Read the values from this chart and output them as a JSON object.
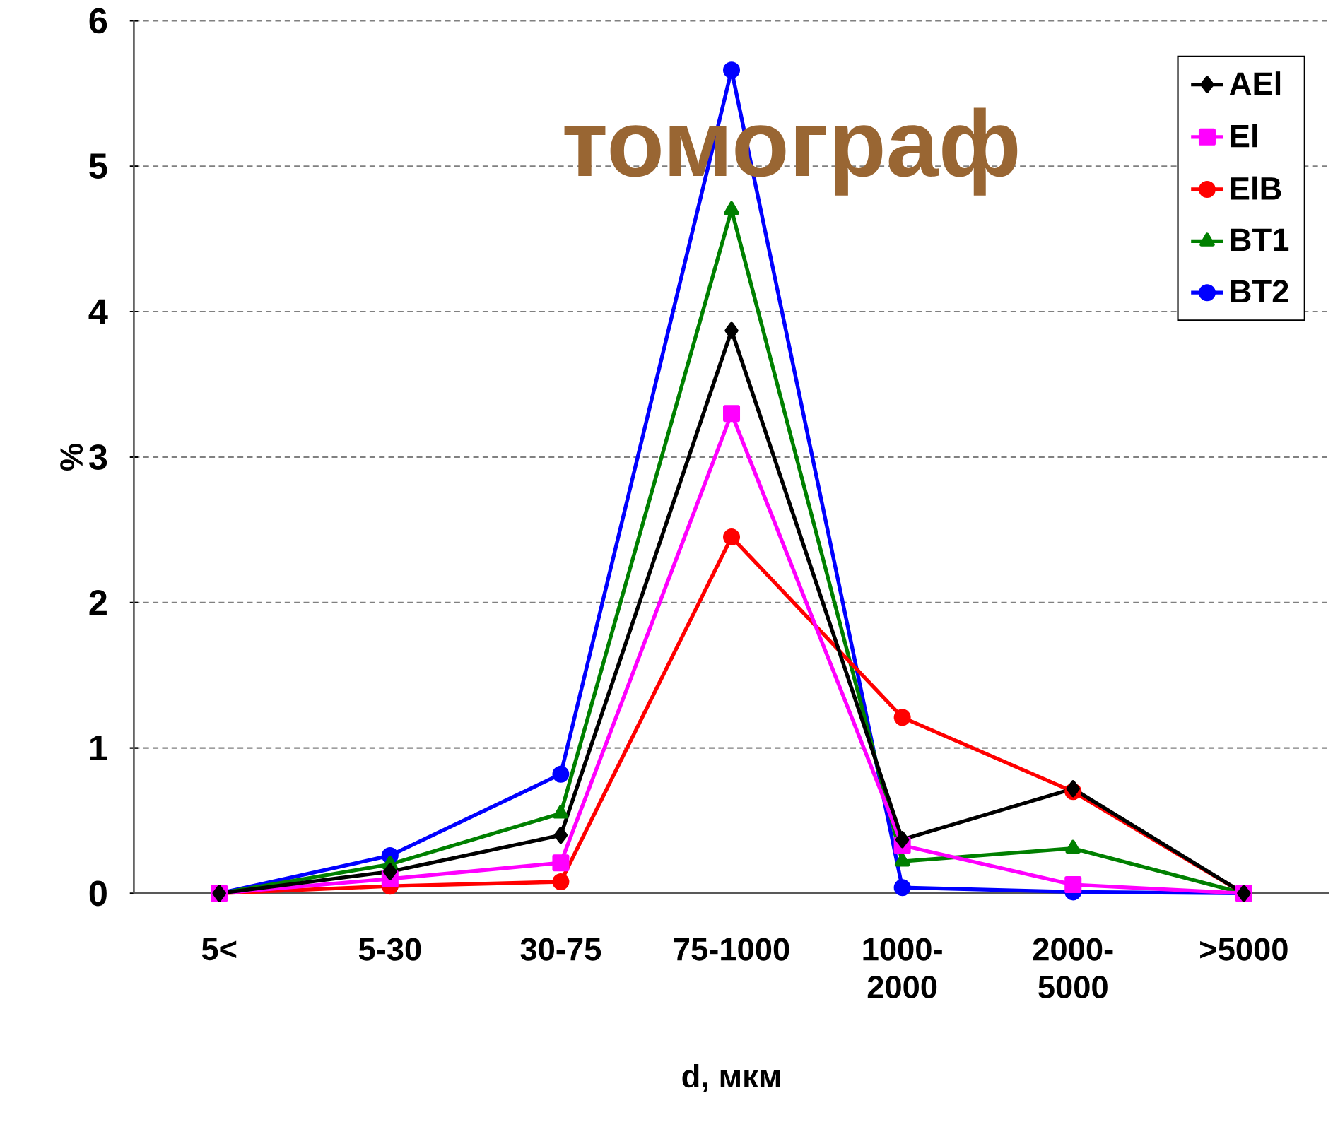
{
  "chart_data": {
    "type": "line",
    "xlabel": "d, мкм",
    "ylabel": "%",
    "categories": [
      "5<",
      "5-30",
      "30-75",
      "75-1000",
      "1000-2000",
      "2000-5000",
      ">5000"
    ],
    "series": [
      {
        "name": "AEl",
        "color": "#000000",
        "marker": "diamond",
        "values": [
          0,
          0.15,
          0.4,
          3.87,
          0.37,
          0.72,
          0
        ]
      },
      {
        "name": "El",
        "color": "#ff00ff",
        "marker": "square",
        "values": [
          0,
          0.1,
          0.21,
          3.3,
          0.33,
          0.06,
          0
        ]
      },
      {
        "name": "ElB",
        "color": "#ff0000",
        "marker": "circle",
        "values": [
          0,
          0.05,
          0.08,
          2.45,
          1.21,
          0.7,
          0
        ]
      },
      {
        "name": "BT1",
        "color": "#008000",
        "marker": "triangle",
        "values": [
          0,
          0.2,
          0.55,
          4.7,
          0.22,
          0.31,
          0
        ]
      },
      {
        "name": "BT2",
        "color": "#0000ff",
        "marker": "circle",
        "values": [
          0,
          0.26,
          0.82,
          5.66,
          0.04,
          0.01,
          0
        ]
      }
    ],
    "ylim": [
      0,
      6
    ],
    "yticks": [
      0,
      1,
      2,
      3,
      4,
      5,
      6
    ],
    "grid": "y",
    "legend": "top right",
    "line_style": "solid",
    "annotations": [
      "томограф"
    ]
  }
}
